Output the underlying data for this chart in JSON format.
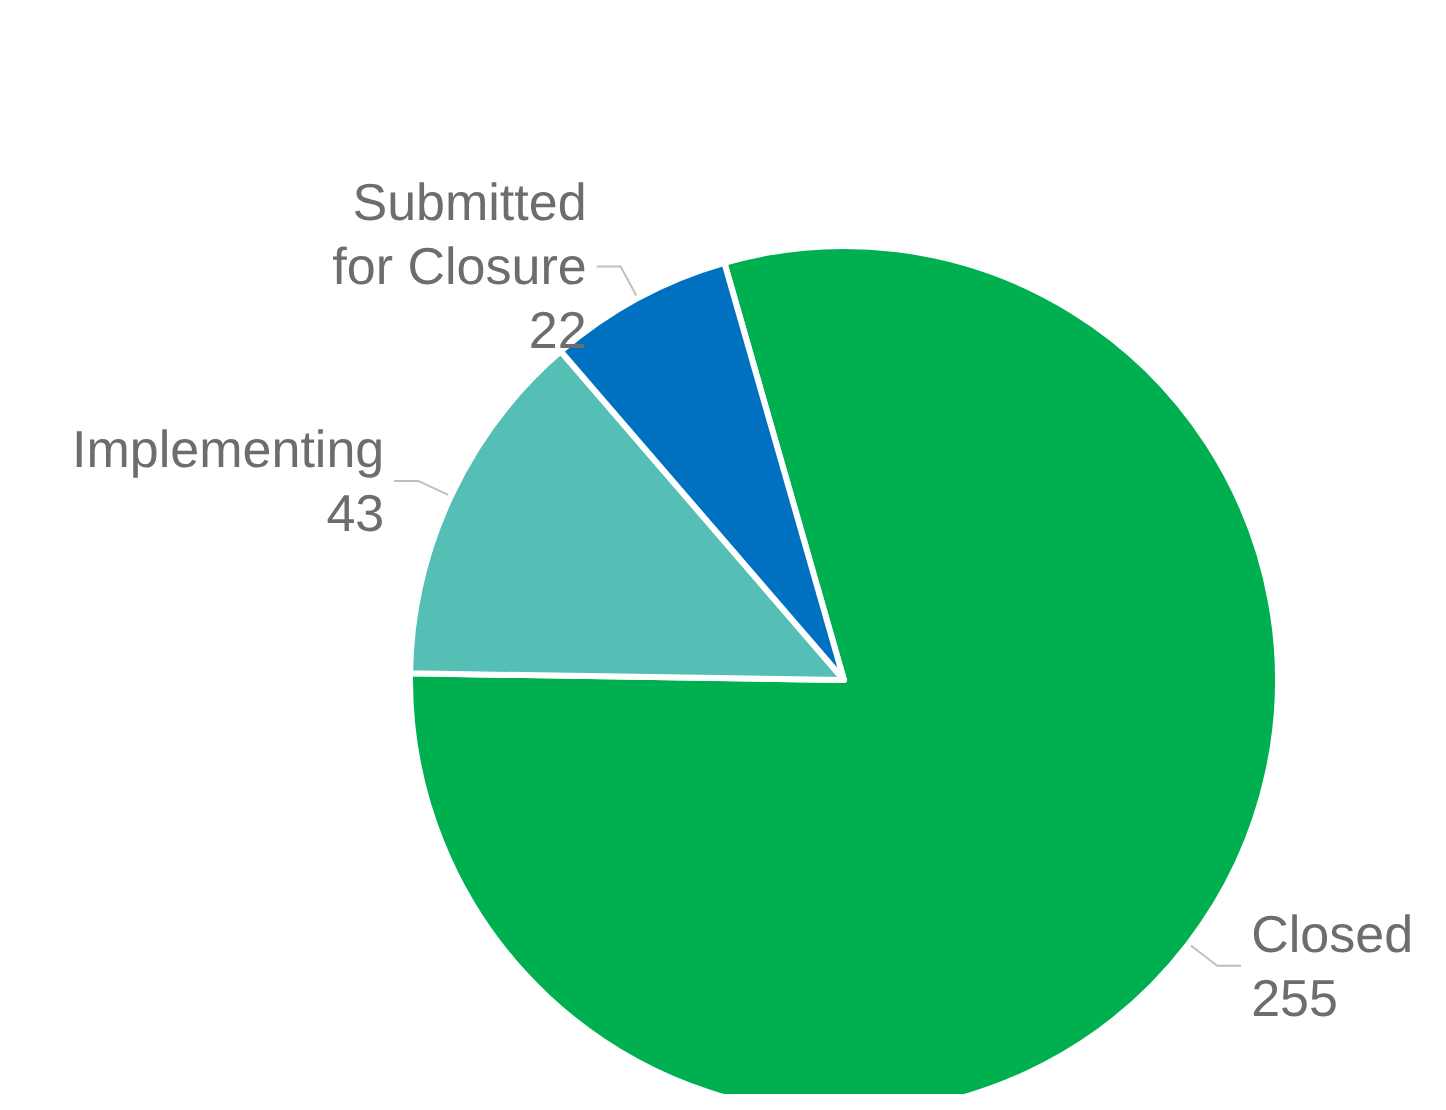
{
  "chart_data": {
    "type": "pie",
    "categories": [
      "Closed",
      "Implementing",
      "Submitted\nfor Closure"
    ],
    "values": [
      255,
      43,
      22
    ],
    "colors": [
      "#00b050",
      "#56bfb5",
      "#0070c0"
    ],
    "data_labels": true
  }
}
